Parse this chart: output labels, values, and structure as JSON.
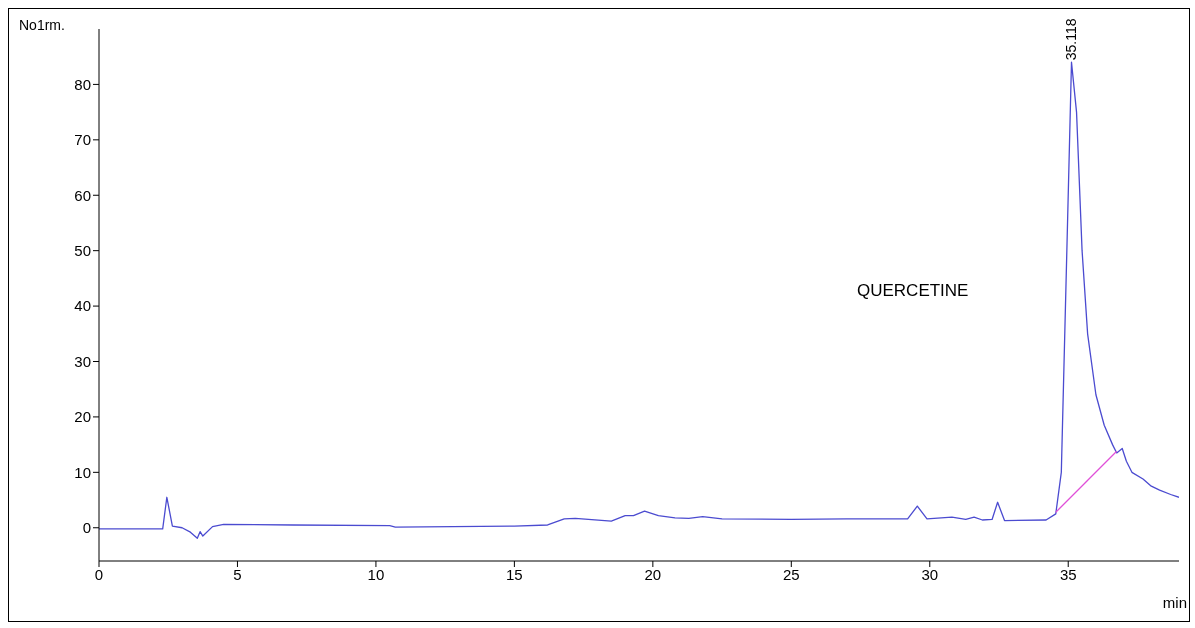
{
  "chart_data": {
    "type": "line",
    "ylabel": "No1rm.",
    "xlabel": "min",
    "xlim": [
      0,
      39
    ],
    "ylim": [
      -6,
      90
    ],
    "xticks": [
      0,
      5,
      10,
      15,
      20,
      25,
      30,
      35
    ],
    "yticks": [
      0,
      10,
      20,
      30,
      40,
      50,
      60,
      70,
      80
    ],
    "marker": "none",
    "line_style": "solid",
    "annotations": [
      {
        "text": "35.118",
        "x": 35.118,
        "y": 84
      },
      "QUERCETINE"
    ],
    "series": [
      {
        "color": "#4b4bd0",
        "x": [
          0,
          2.3,
          2.45,
          2.65,
          3.0,
          3.3,
          3.55,
          3.65,
          3.75,
          4.1,
          4.5,
          7,
          10.5,
          10.7,
          15,
          16.2,
          16.8,
          17.2,
          18.5,
          19,
          19.3,
          19.7,
          20.2,
          20.8,
          21.3,
          21.8,
          22.5,
          25,
          27,
          29.2,
          29.55,
          29.9,
          30.8,
          31.3,
          31.6,
          31.9,
          32.25,
          32.45,
          32.7,
          34.2,
          34.55,
          34.75,
          34.95,
          35.118,
          35.3,
          35.5,
          35.7,
          36.0,
          36.3,
          36.6,
          36.75,
          36.95,
          37.1,
          37.3,
          37.7,
          38.0,
          38.3,
          38.7,
          39
        ],
        "values": [
          -0.2,
          -0.2,
          5.5,
          0.3,
          0,
          -0.8,
          -1.9,
          -0.7,
          -1.5,
          0.2,
          0.6,
          0.5,
          0.4,
          0.1,
          0.3,
          0.5,
          1.6,
          1.7,
          1.2,
          2.2,
          2.2,
          3.0,
          2.2,
          1.8,
          1.7,
          2.0,
          1.6,
          1.5,
          1.6,
          1.6,
          3.9,
          1.6,
          1.9,
          1.5,
          1.9,
          1.4,
          1.5,
          4.6,
          1.3,
          1.4,
          2.5,
          10,
          50,
          84,
          75,
          50,
          35,
          24,
          18.5,
          15,
          13.5,
          14.3,
          12,
          10,
          8.8,
          7.5,
          6.8,
          6,
          5.5
        ]
      },
      {
        "type": "line",
        "color": "#e050d8",
        "x": [
          34.55,
          36.75
        ],
        "values": [
          2.8,
          13.8
        ]
      }
    ]
  }
}
